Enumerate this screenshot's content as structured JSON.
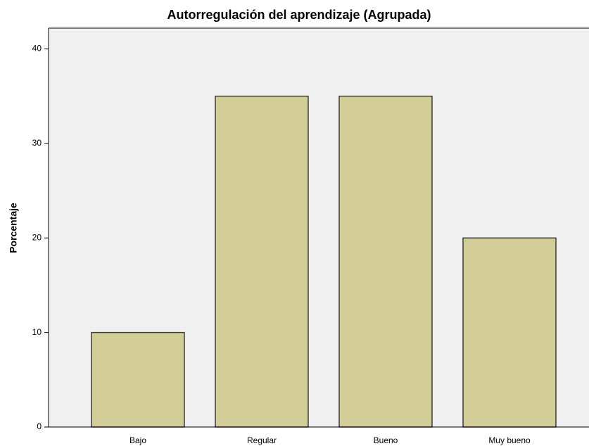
{
  "chart_data": {
    "type": "bar",
    "title": "Autorregulación del aprendizaje (Agrupada)",
    "y_label": "Porcentaje",
    "categories": [
      "Bajo",
      "Regular",
      "Bueno",
      "Muy bueno"
    ],
    "values": [
      10,
      35,
      35,
      20
    ],
    "color": "#d3ce97",
    "ylim": [
      0,
      42.2
    ],
    "yticks": [
      0,
      10,
      20,
      30,
      40
    ],
    "grid": false
  }
}
